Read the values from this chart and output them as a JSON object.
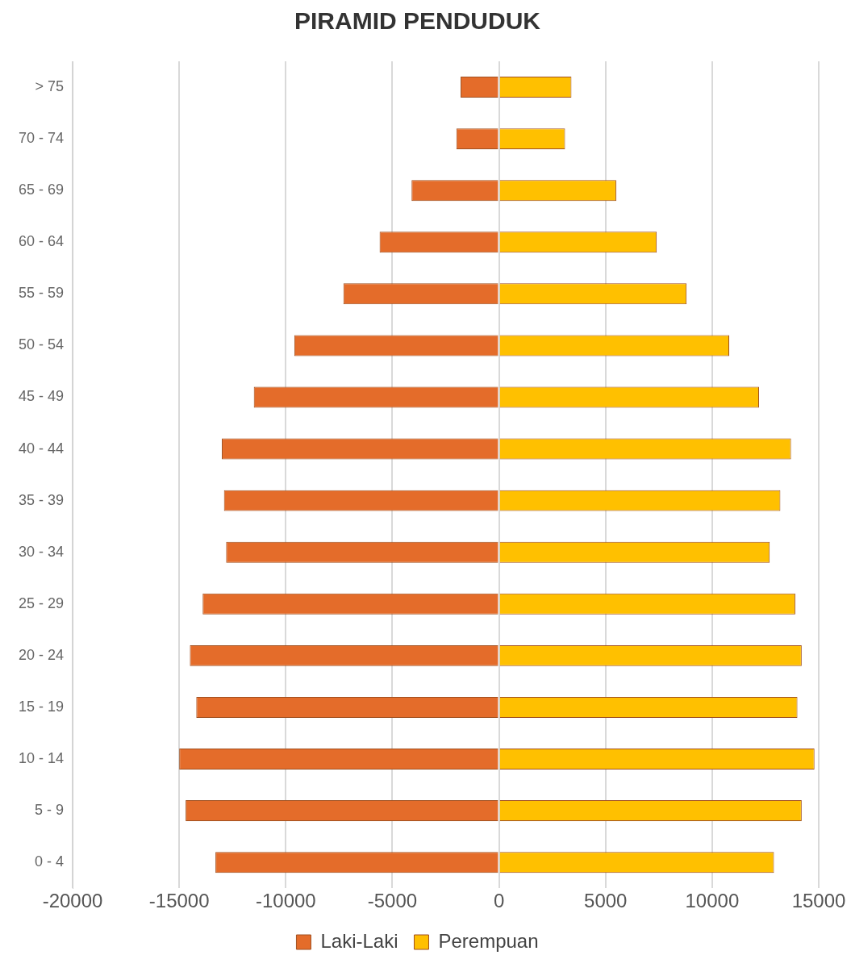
{
  "chart_data": {
    "type": "bar",
    "orientation": "horizontal",
    "stacked": true,
    "title": "PIRAMID PENDUDUK",
    "categories": [
      "> 75",
      "70 - 74",
      "65 - 69",
      "60 - 64",
      "55 - 59",
      "50 - 54",
      "45 - 49",
      "40 - 44",
      "35 - 39",
      "30 - 34",
      "25 - 29",
      "20 - 24",
      "15 - 19",
      "10 - 14",
      "5 - 9",
      "0 - 4"
    ],
    "series": [
      {
        "name": "Laki-Laki",
        "color": "#e46c2a",
        "values": [
          -1800,
          -2000,
          -4100,
          -5600,
          -7300,
          -9600,
          -11500,
          -13000,
          -12900,
          -12800,
          -13900,
          -14500,
          -14200,
          -15000,
          -14700,
          -13300
        ]
      },
      {
        "name": "Perempuan",
        "color": "#ffc000",
        "values": [
          3400,
          3100,
          5500,
          7400,
          8800,
          10800,
          12200,
          13700,
          13200,
          12700,
          13900,
          14200,
          14000,
          14800,
          14200,
          12900
        ]
      }
    ],
    "xlim": [
      -20000,
      15000
    ],
    "xticks": [
      -20000,
      -15000,
      -10000,
      -5000,
      0,
      5000,
      10000,
      15000
    ],
    "grid": "x",
    "legend": "bottom"
  }
}
